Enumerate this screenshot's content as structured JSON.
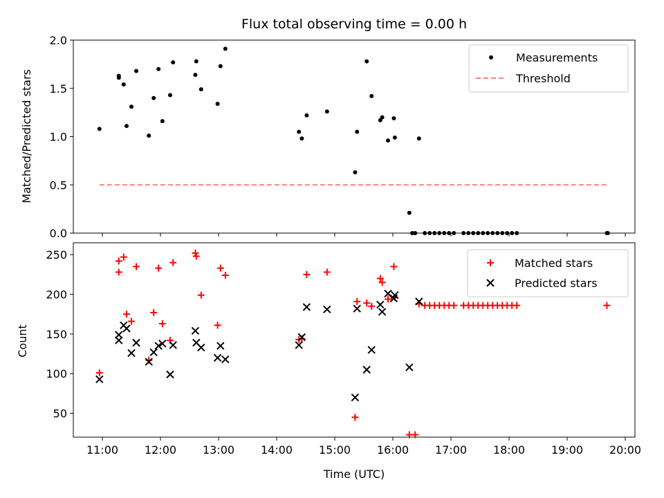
{
  "chart_data": [
    {
      "type": "scatter",
      "title": "Flux total observing time = 0.00 h",
      "xlabel": "",
      "ylabel": "Matched/Predicted stars",
      "ylim": [
        0,
        2.0
      ],
      "yticks": [
        "0.0",
        "0.5",
        "1.0",
        "1.5",
        "2.0"
      ],
      "legend_position": "top-right",
      "series": [
        {
          "name": "Measurements",
          "color": "#000000",
          "marker": "dot",
          "points": [
            [
              "10:57",
              1.08
            ],
            [
              "11:17",
              1.63
            ],
            [
              "11:17",
              1.61
            ],
            [
              "11:22",
              1.54
            ],
            [
              "11:25",
              1.11
            ],
            [
              "11:30",
              1.31
            ],
            [
              "11:35",
              1.68
            ],
            [
              "11:48",
              1.01
            ],
            [
              "11:53",
              1.4
            ],
            [
              "11:58",
              1.7
            ],
            [
              "12:02",
              1.16
            ],
            [
              "12:10",
              1.43
            ],
            [
              "12:13",
              1.77
            ],
            [
              "12:36",
              1.64
            ],
            [
              "12:37",
              1.78
            ],
            [
              "12:42",
              1.49
            ],
            [
              "12:59",
              1.34
            ],
            [
              "13:02",
              1.73
            ],
            [
              "13:07",
              1.91
            ],
            [
              "14:23",
              1.05
            ],
            [
              "14:26",
              0.98
            ],
            [
              "14:31",
              1.22
            ],
            [
              "14:52",
              1.26
            ],
            [
              "15:21",
              0.63
            ],
            [
              "15:23",
              1.05
            ],
            [
              "15:33",
              1.78
            ],
            [
              "15:38",
              1.42
            ],
            [
              "15:47",
              1.17
            ],
            [
              "15:49",
              1.2
            ],
            [
              "15:55",
              0.96
            ],
            [
              "16:01",
              1.19
            ],
            [
              "16:02",
              0.99
            ],
            [
              "16:17",
              0.21
            ],
            [
              "16:20",
              0.0
            ],
            [
              "16:23",
              0.0
            ],
            [
              "16:27",
              0.98
            ],
            [
              "16:33",
              0.0
            ],
            [
              "16:38",
              0.0
            ],
            [
              "16:43",
              0.0
            ],
            [
              "16:48",
              0.0
            ],
            [
              "16:53",
              0.0
            ],
            [
              "16:58",
              0.0
            ],
            [
              "17:03",
              0.0
            ],
            [
              "17:13",
              0.0
            ],
            [
              "17:18",
              0.0
            ],
            [
              "17:23",
              0.0
            ],
            [
              "17:28",
              0.0
            ],
            [
              "17:33",
              0.0
            ],
            [
              "17:38",
              0.0
            ],
            [
              "17:43",
              0.0
            ],
            [
              "17:48",
              0.0
            ],
            [
              "17:53",
              0.0
            ],
            [
              "17:58",
              0.0
            ],
            [
              "18:03",
              0.0
            ],
            [
              "18:08",
              0.0
            ],
            [
              "19:41",
              0.0
            ],
            [
              "19:42",
              0.0
            ]
          ]
        },
        {
          "name": "Threshold",
          "color": "#ff7f7f",
          "style": "dashed",
          "points": [
            [
              "10:57",
              0.5
            ],
            [
              "19:42",
              0.5
            ]
          ]
        }
      ]
    },
    {
      "type": "scatter",
      "title": "",
      "xlabel": "Time (UTC)",
      "ylabel": "Count",
      "ylim": [
        20,
        265
      ],
      "yticks": [
        "50",
        "100",
        "150",
        "200",
        "250"
      ],
      "xticks": [
        "11:00",
        "12:00",
        "13:00",
        "14:00",
        "15:00",
        "16:00",
        "17:00",
        "18:00",
        "19:00",
        "20:00"
      ],
      "xlim": [
        "10:30",
        "20:10"
      ],
      "legend_position": "top-right",
      "series": [
        {
          "name": "Matched stars",
          "color": "#ff0000",
          "marker": "plus",
          "points": [
            [
              "10:57",
              101
            ],
            [
              "11:17",
              228
            ],
            [
              "11:17",
              242
            ],
            [
              "11:22",
              247
            ],
            [
              "11:25",
              175
            ],
            [
              "11:30",
              166
            ],
            [
              "11:35",
              235
            ],
            [
              "11:48",
              117
            ],
            [
              "11:53",
              177
            ],
            [
              "11:58",
              233
            ],
            [
              "12:02",
              163
            ],
            [
              "12:10",
              142
            ],
            [
              "12:13",
              240
            ],
            [
              "12:36",
              252
            ],
            [
              "12:37",
              248
            ],
            [
              "12:42",
              199
            ],
            [
              "12:59",
              161
            ],
            [
              "13:02",
              233
            ],
            [
              "13:07",
              224
            ],
            [
              "14:23",
              143
            ],
            [
              "14:26",
              144
            ],
            [
              "14:31",
              225
            ],
            [
              "14:52",
              228
            ],
            [
              "15:21",
              45
            ],
            [
              "15:23",
              191
            ],
            [
              "15:33",
              189
            ],
            [
              "15:38",
              185
            ],
            [
              "15:47",
              220
            ],
            [
              "15:49",
              215
            ],
            [
              "15:55",
              194
            ],
            [
              "16:01",
              235
            ],
            [
              "16:02",
              196
            ],
            [
              "16:17",
              23
            ],
            [
              "16:23",
              23
            ],
            [
              "16:27",
              188
            ],
            [
              "16:33",
              186
            ],
            [
              "16:38",
              186
            ],
            [
              "16:43",
              186
            ],
            [
              "16:48",
              186
            ],
            [
              "16:53",
              186
            ],
            [
              "16:58",
              186
            ],
            [
              "17:03",
              186
            ],
            [
              "17:13",
              186
            ],
            [
              "17:18",
              186
            ],
            [
              "17:23",
              186
            ],
            [
              "17:28",
              186
            ],
            [
              "17:33",
              186
            ],
            [
              "17:38",
              186
            ],
            [
              "17:43",
              186
            ],
            [
              "17:48",
              186
            ],
            [
              "17:53",
              186
            ],
            [
              "17:58",
              186
            ],
            [
              "18:03",
              186
            ],
            [
              "18:08",
              186
            ],
            [
              "19:41",
              186
            ]
          ]
        },
        {
          "name": "Predicted stars",
          "color": "#000000",
          "marker": "x",
          "points": [
            [
              "10:57",
              93
            ],
            [
              "11:17",
              149
            ],
            [
              "11:17",
              142
            ],
            [
              "11:22",
              161
            ],
            [
              "11:25",
              157
            ],
            [
              "11:30",
              126
            ],
            [
              "11:35",
              139
            ],
            [
              "11:48",
              115
            ],
            [
              "11:53",
              127
            ],
            [
              "11:58",
              135
            ],
            [
              "12:02",
              138
            ],
            [
              "12:10",
              99
            ],
            [
              "12:13",
              136
            ],
            [
              "12:36",
              154
            ],
            [
              "12:37",
              139
            ],
            [
              "12:42",
              133
            ],
            [
              "12:59",
              120
            ],
            [
              "13:02",
              135
            ],
            [
              "13:07",
              118
            ],
            [
              "14:23",
              136
            ],
            [
              "14:26",
              146
            ],
            [
              "14:31",
              184
            ],
            [
              "14:52",
              181
            ],
            [
              "15:21",
              70
            ],
            [
              "15:23",
              182
            ],
            [
              "15:33",
              105
            ],
            [
              "15:38",
              130
            ],
            [
              "15:47",
              187
            ],
            [
              "15:49",
              178
            ],
            [
              "15:55",
              201
            ],
            [
              "16:01",
              195
            ],
            [
              "16:02",
              199
            ],
            [
              "16:17",
              108
            ],
            [
              "16:27",
              191
            ]
          ]
        }
      ]
    }
  ]
}
